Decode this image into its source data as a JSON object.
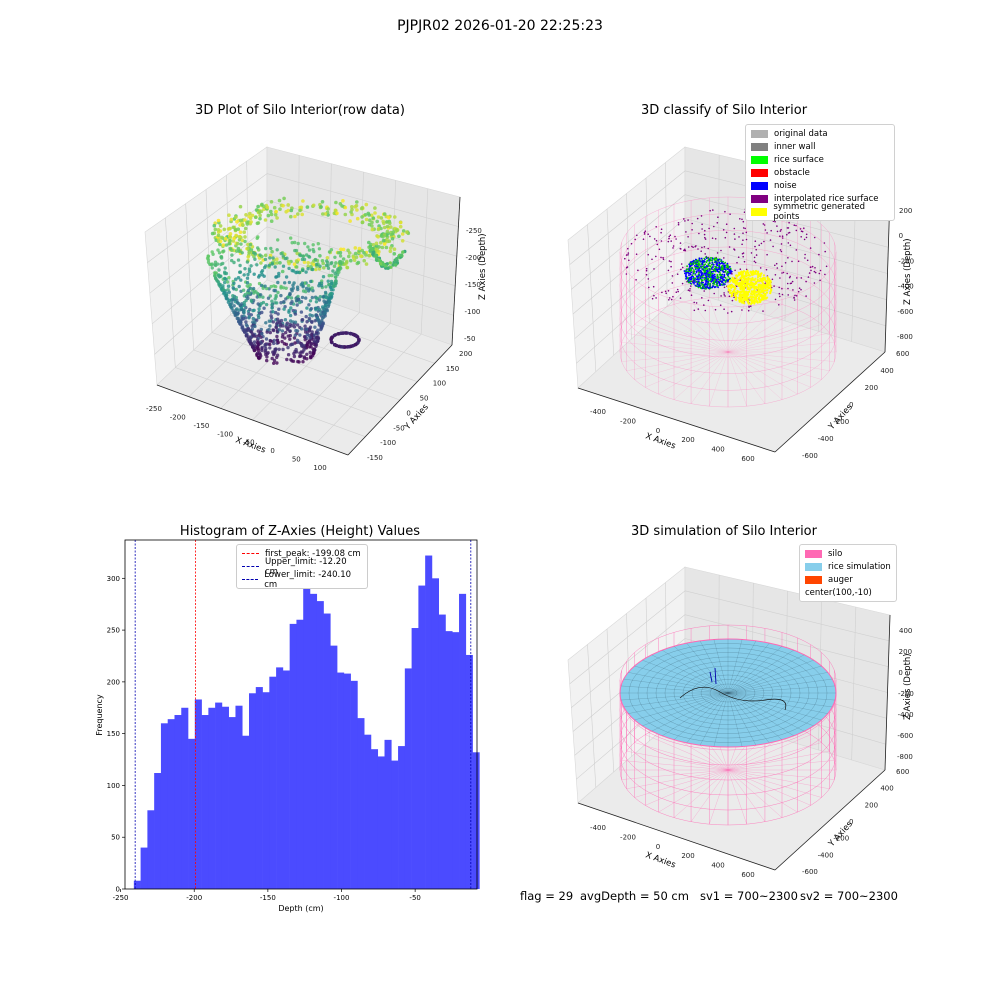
{
  "figure_title": "PJPJR02 2026-01-20 22:25:23",
  "footer": {
    "flag": "flag = 29",
    "avg_depth": "avgDepth = 50 cm",
    "sv1": "sv1 = 700~2300",
    "sv2": "sv2 = 700~2300"
  },
  "chart_data": [
    {
      "type": "scatter",
      "title": "3D Plot of Silo Interior(row data)",
      "xlabel": "X Axies",
      "ylabel": "Y Axies",
      "zlabel": "Z Axies (Depth)",
      "x_ticks": [
        "-250",
        "-200",
        "-150",
        "-100",
        "-50",
        "0",
        "50",
        "100"
      ],
      "y_ticks": [
        "-150",
        "-100",
        "-50",
        "0",
        "50",
        "100",
        "150",
        "200"
      ],
      "z_ticks": [
        "-250",
        "-200",
        "-150",
        "-100",
        "-50"
      ],
      "xlim": [
        -260,
        120
      ],
      "ylim": [
        -160,
        220
      ],
      "zlim": [
        -260,
        -30
      ],
      "colormap": "viridis"
    },
    {
      "type": "scatter",
      "title": "3D classify of Silo Interior",
      "xlabel": "X Axies",
      "ylabel": "Y Axies",
      "zlabel": "Z Axies (Depth)",
      "x_ticks": [
        "-400",
        "-200",
        "0",
        "200",
        "400",
        "600"
      ],
      "y_ticks": [
        "-600",
        "-400",
        "-200",
        "0",
        "200",
        "400",
        "600"
      ],
      "z_ticks": [
        "-800",
        "-600",
        "-400",
        "-200",
        "0",
        "200"
      ],
      "legend": [
        {
          "label": "original data",
          "color": "#b0b0b0"
        },
        {
          "label": "inner wall",
          "color": "#808080"
        },
        {
          "label": "rice surface",
          "color": "#00ff00"
        },
        {
          "label": "obstacle",
          "color": "#ff0000"
        },
        {
          "label": "noise",
          "color": "#0000ff"
        },
        {
          "label": "interpolated rice surface",
          "color": "#800080"
        },
        {
          "label": "symmetric generated points",
          "color": "#ffff00"
        }
      ]
    },
    {
      "type": "bar",
      "title": "Histogram of Z-Axies (Height) Values",
      "xlabel": "Depth (cm)",
      "ylabel": "Frequency",
      "xlim": [
        -247,
        -8
      ],
      "ylim": [
        0,
        337
      ],
      "x_ticks": [
        -250,
        -200,
        -150,
        -100,
        -50
      ],
      "y_ticks": [
        0,
        50,
        100,
        150,
        200,
        250,
        300
      ],
      "bin_start": -241,
      "bin_width": 4.6,
      "values": [
        8,
        40,
        76,
        112,
        160,
        164,
        168,
        175,
        145,
        183,
        168,
        175,
        180,
        176,
        166,
        177,
        148,
        189,
        195,
        190,
        205,
        214,
        211,
        256,
        260,
        290,
        285,
        278,
        266,
        235,
        209,
        208,
        201,
        165,
        149,
        135,
        128,
        144,
        124,
        138,
        213,
        252,
        293,
        322,
        300,
        265,
        249,
        248,
        285,
        226,
        132
      ],
      "bar_color": "#4b4bff",
      "vlines": [
        {
          "label": "first_peak: -199.08 cm",
          "x": -199.08,
          "color": "#ff0000"
        },
        {
          "label": "Upper_limit: -12.20 cm",
          "x": -12.2,
          "color": "#0000b0"
        },
        {
          "label": "Lower_limit: -240.10 cm",
          "x": -240.1,
          "color": "#0000b0"
        }
      ]
    },
    {
      "type": "scatter",
      "title": "3D simulation of Silo Interior",
      "xlabel": "X Axies",
      "ylabel": "Y Axies",
      "zlabel": "Z Axies (Depth)",
      "x_ticks": [
        "-400",
        "-200",
        "0",
        "200",
        "400",
        "600"
      ],
      "y_ticks": [
        "-600",
        "-400",
        "-200",
        "0",
        "200",
        "400",
        "600"
      ],
      "z_ticks": [
        "-800",
        "-600",
        "-400",
        "-200",
        "0",
        "200",
        "400"
      ],
      "legend": [
        {
          "label": "silo",
          "color": "#ff69b4"
        },
        {
          "label": "rice simulation",
          "color": "#87ceeb"
        },
        {
          "label": "auger",
          "color": "#ff4500"
        },
        {
          "label": "center(100,-10)",
          "color": ""
        }
      ]
    }
  ]
}
